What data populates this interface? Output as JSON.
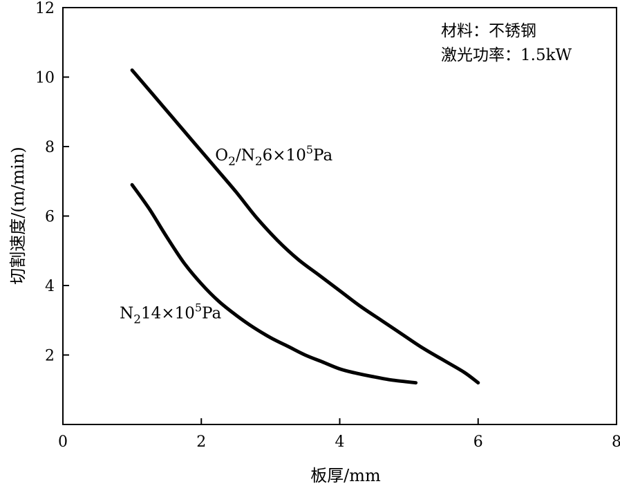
{
  "chart_data": {
    "type": "line",
    "xlabel": "板厚/mm",
    "ylabel": "切割速度/(m/min)",
    "xlim": [
      0,
      8
    ],
    "ylim": [
      0,
      12
    ],
    "xticks": [
      0,
      2,
      4,
      6,
      8
    ],
    "yticks": [
      2,
      4,
      6,
      8,
      10,
      12
    ],
    "x_tick_labels": [
      "0",
      "2",
      "4",
      "6",
      "8"
    ],
    "y_tick_labels": [
      "2",
      "4",
      "6",
      "8",
      "10",
      "12"
    ],
    "grid": false,
    "annotations": [
      "材料：不锈钢",
      "激光功率：1.5kW"
    ],
    "series": [
      {
        "name": "O2/N2 6×10^5 Pa",
        "label_parts": {
          "a": "O",
          "a_sub": "2",
          "b": "/N",
          "b_sub": "2",
          "c": "6×10",
          "sup": "5",
          "d": "Pa"
        },
        "label_anchor": [
          2.2,
          7.6
        ],
        "points": [
          [
            1.0,
            10.2
          ],
          [
            1.3,
            9.5
          ],
          [
            1.6,
            8.8
          ],
          [
            1.9,
            8.1
          ],
          [
            2.2,
            7.4
          ],
          [
            2.5,
            6.7
          ],
          [
            2.8,
            5.95
          ],
          [
            3.1,
            5.3
          ],
          [
            3.4,
            4.75
          ],
          [
            3.7,
            4.3
          ],
          [
            4.0,
            3.85
          ],
          [
            4.3,
            3.4
          ],
          [
            4.6,
            3.0
          ],
          [
            4.9,
            2.6
          ],
          [
            5.2,
            2.2
          ],
          [
            5.5,
            1.85
          ],
          [
            5.8,
            1.5
          ],
          [
            6.0,
            1.2
          ]
        ]
      },
      {
        "name": "N2 14×10^5 Pa",
        "label_parts": {
          "a": "N",
          "a_sub": "2",
          "c": "14×10",
          "sup": "5",
          "d": "Pa"
        },
        "label_anchor": [
          0.82,
          3.05
        ],
        "points": [
          [
            1.0,
            6.9
          ],
          [
            1.25,
            6.2
          ],
          [
            1.5,
            5.4
          ],
          [
            1.75,
            4.65
          ],
          [
            2.0,
            4.05
          ],
          [
            2.25,
            3.55
          ],
          [
            2.5,
            3.15
          ],
          [
            2.75,
            2.8
          ],
          [
            3.0,
            2.5
          ],
          [
            3.25,
            2.25
          ],
          [
            3.5,
            2.0
          ],
          [
            3.75,
            1.8
          ],
          [
            4.0,
            1.6
          ],
          [
            4.25,
            1.47
          ],
          [
            4.5,
            1.37
          ],
          [
            4.75,
            1.28
          ],
          [
            5.1,
            1.2
          ]
        ]
      }
    ]
  }
}
